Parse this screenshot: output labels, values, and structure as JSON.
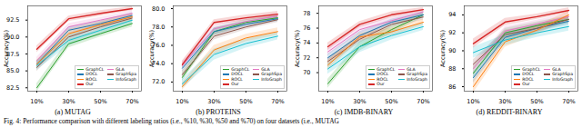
{
  "chart_data": [
    {
      "type": "line",
      "title": "(a) MUTAG",
      "y_label": "Accuracy(%)",
      "categories": [
        "10%",
        "30%",
        "50%",
        "70%"
      ],
      "ylim": [
        82,
        94.6
      ],
      "yticks": [
        82.5,
        {
          "value": 85,
          "label": "85.0"
        },
        87.5,
        {
          "value": 90,
          "label": "90.0"
        },
        92.5
      ],
      "grid": false,
      "legend": "lower right",
      "series": [
        {
          "name": "GraphCL",
          "color": "#2ca02c",
          "values": [
            82.5,
            89.0,
            90.5,
            92.0
          ],
          "errors": [
            0.6,
            0.6,
            0.5,
            0.5
          ]
        },
        {
          "name": "GLA",
          "color": "#e377c2",
          "values": [
            86.5,
            91.5,
            92.5,
            93.5
          ],
          "errors": [
            0.5,
            0.5,
            0.4,
            0.4
          ]
        },
        {
          "name": "DOCL",
          "color": "#1f77b4",
          "values": [
            86.0,
            91.0,
            92.0,
            93.2
          ],
          "errors": [
            0.5,
            0.5,
            0.4,
            0.4
          ]
        },
        {
          "name": "GraphSpa",
          "color": "#8c564b",
          "values": [
            85.5,
            90.0,
            91.5,
            92.8
          ],
          "errors": [
            0.6,
            0.5,
            0.5,
            0.4
          ]
        },
        {
          "name": "ROCL",
          "color": "#ff7f0e",
          "values": [
            86.0,
            90.5,
            91.8,
            93.0
          ],
          "errors": [
            0.6,
            0.6,
            0.5,
            0.5
          ]
        },
        {
          "name": "InfoGraph",
          "color": "#17becf",
          "values": [
            85.8,
            89.5,
            91.0,
            92.5
          ],
          "errors": [
            0.7,
            0.8,
            0.7,
            0.6
          ]
        },
        {
          "name": "Our",
          "color": "#d62728",
          "values": [
            88.2,
            92.7,
            93.5,
            94.2
          ],
          "errors": [
            0.5,
            0.4,
            0.4,
            0.3
          ]
        }
      ]
    },
    {
      "type": "line",
      "title": "(b) PROTEINS",
      "y_label": "Accuracy(%)",
      "categories": [
        "10%",
        "30%",
        "50%",
        "70%"
      ],
      "ylim": [
        71,
        80.3
      ],
      "yticks": [
        {
          "value": 72,
          "label": "72.0"
        },
        {
          "value": 74,
          "label": "74.0"
        },
        {
          "value": 76,
          "label": "76.0"
        },
        {
          "value": 78,
          "label": "78.0"
        },
        {
          "value": 80,
          "label": "80.0"
        }
      ],
      "grid": false,
      "legend": "lower right",
      "series": [
        {
          "name": "GraphCL",
          "color": "#2ca02c",
          "values": [
            72.5,
            77.5,
            78.5,
            79.0
          ],
          "errors": [
            0.4,
            0.4,
            0.3,
            0.3
          ]
        },
        {
          "name": "GLA",
          "color": "#e377c2",
          "values": [
            73.8,
            77.8,
            78.6,
            79.2
          ],
          "errors": [
            0.4,
            0.4,
            0.3,
            0.3
          ]
        },
        {
          "name": "DOCL",
          "color": "#1f77b4",
          "values": [
            73.5,
            77.5,
            78.3,
            78.9
          ],
          "errors": [
            0.4,
            0.4,
            0.3,
            0.3
          ]
        },
        {
          "name": "GraphSpa",
          "color": "#8c564b",
          "values": [
            72.8,
            77.0,
            78.0,
            78.8
          ],
          "errors": [
            0.4,
            0.4,
            0.3,
            0.3
          ]
        },
        {
          "name": "ROCL",
          "color": "#ff7f0e",
          "values": [
            71.5,
            75.5,
            76.8,
            77.5
          ],
          "errors": [
            0.4,
            0.5,
            0.4,
            0.4
          ]
        },
        {
          "name": "InfoGraph",
          "color": "#17becf",
          "values": [
            71.8,
            75.0,
            76.2,
            77.0
          ],
          "errors": [
            0.5,
            0.6,
            0.5,
            0.4
          ]
        },
        {
          "name": "Our",
          "color": "#d62728",
          "values": [
            73.9,
            78.5,
            79.0,
            79.4
          ],
          "errors": [
            0.4,
            0.3,
            0.3,
            0.3
          ]
        }
      ]
    },
    {
      "type": "line",
      "title": "(c) IMDB-BINARY",
      "y_label": "Accuracy(%)",
      "categories": [
        "10%",
        "30%",
        "50%",
        "70%"
      ],
      "ylim": [
        67.5,
        79
      ],
      "yticks": [
        70,
        72,
        74,
        76,
        78
      ],
      "grid": false,
      "legend": "lower right",
      "series": [
        {
          "name": "GraphCL",
          "color": "#2ca02c",
          "values": [
            68.5,
            73.5,
            75.8,
            77.8
          ],
          "errors": [
            0.6,
            0.6,
            0.5,
            0.4
          ]
        },
        {
          "name": "GLA",
          "color": "#e377c2",
          "values": [
            72.8,
            75.8,
            77.0,
            78.2
          ],
          "errors": [
            0.5,
            0.5,
            0.4,
            0.4
          ]
        },
        {
          "name": "DOCL",
          "color": "#1f77b4",
          "values": [
            72.0,
            75.0,
            76.8,
            77.8
          ],
          "errors": [
            0.5,
            0.5,
            0.4,
            0.4
          ]
        },
        {
          "name": "GraphSpa",
          "color": "#8c564b",
          "values": [
            71.5,
            74.5,
            76.5,
            77.5
          ],
          "errors": [
            0.5,
            0.5,
            0.4,
            0.4
          ]
        },
        {
          "name": "ROCL",
          "color": "#ff7f0e",
          "values": [
            71.0,
            74.8,
            75.5,
            76.8
          ],
          "errors": [
            0.6,
            0.5,
            0.5,
            0.4
          ]
        },
        {
          "name": "InfoGraph",
          "color": "#17becf",
          "values": [
            70.5,
            73.5,
            75.0,
            76.2
          ],
          "errors": [
            0.7,
            0.8,
            0.6,
            0.5
          ]
        },
        {
          "name": "Our",
          "color": "#d62728",
          "values": [
            73.5,
            76.5,
            77.8,
            78.5
          ],
          "errors": [
            0.5,
            0.4,
            0.4,
            0.3
          ]
        }
      ]
    },
    {
      "type": "line",
      "title": "(d) REDDIT-BINARY",
      "y_label": "Accuracy(%)",
      "categories": [
        "10%",
        "30%",
        "50%",
        "70%"
      ],
      "ylim": [
        85.5,
        95
      ],
      "yticks": [
        86,
        88,
        90,
        92,
        94
      ],
      "grid": false,
      "legend": "lower right",
      "series": [
        {
          "name": "GraphCL",
          "color": "#2ca02c",
          "values": [
            87.5,
            92.0,
            92.8,
            93.5
          ],
          "errors": [
            0.6,
            0.5,
            0.4,
            0.4
          ]
        },
        {
          "name": "GLA",
          "color": "#e377c2",
          "values": [
            88.0,
            92.2,
            93.0,
            93.8
          ],
          "errors": [
            0.5,
            0.5,
            0.4,
            0.4
          ]
        },
        {
          "name": "DOCL",
          "color": "#1f77b4",
          "values": [
            87.0,
            91.5,
            92.5,
            93.3
          ],
          "errors": [
            0.6,
            0.5,
            0.4,
            0.4
          ]
        },
        {
          "name": "GraphSpa",
          "color": "#8c564b",
          "values": [
            88.5,
            91.8,
            92.5,
            93.5
          ],
          "errors": [
            0.5,
            0.5,
            0.4,
            0.4
          ]
        },
        {
          "name": "ROCL",
          "color": "#ff7f0e",
          "values": [
            86.0,
            91.0,
            92.3,
            94.0
          ],
          "errors": [
            0.7,
            0.6,
            0.5,
            0.4
          ]
        },
        {
          "name": "InfoGraph",
          "color": "#17becf",
          "values": [
            89.8,
            91.2,
            92.0,
            92.7
          ],
          "errors": [
            0.6,
            0.6,
            0.5,
            0.5
          ]
        },
        {
          "name": "Our",
          "color": "#d62728",
          "values": [
            90.8,
            93.2,
            93.8,
            94.5
          ],
          "errors": [
            0.5,
            0.4,
            0.3,
            0.3
          ]
        }
      ]
    }
  ],
  "caption": "Fig. 4: Performance comparison with different labeling ratios (i.e., %10, %30, %50 and %70) on four datasets (i.e., MUTAG"
}
